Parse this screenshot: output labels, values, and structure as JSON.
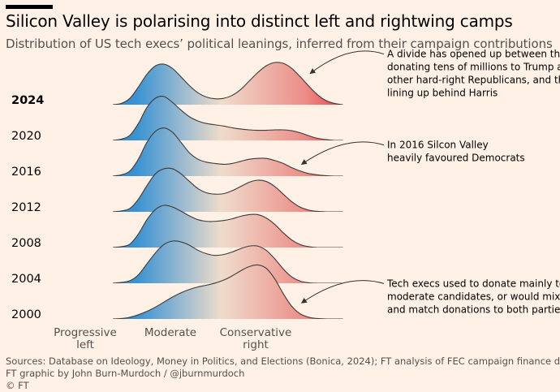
{
  "header": {
    "title": "Silicon Valley is polarising into distinct left and rightwing camps",
    "subtitle": "Distribution of US tech execs’ political leanings, inferred from their campaign contributions"
  },
  "footer": {
    "source": "Sources: Database on Ideology, Money in Politics, and Elections (Bonica, 2024); FT analysis of FEC campaign finance data",
    "credit": "FT graphic by John Burn-Murdoch / @jburnmurdoch",
    "copyright": "© FT"
  },
  "colors": {
    "left": "#1f82c8",
    "middle": "#efdccb",
    "right": "#e41f2c",
    "background": "#fff1e5"
  },
  "chart_data": {
    "type": "area",
    "variant": "ridgeline",
    "title": "Silicon Valley is polarising into distinct left and rightwing camps",
    "subtitle": "Distribution of US tech execs’ political leanings, inferred from their campaign contributions",
    "x_axis": {
      "ticks": [
        {
          "value": 0.0,
          "lines": [
            "Progressive",
            "left"
          ]
        },
        {
          "value": 0.5,
          "lines": [
            "Moderate"
          ]
        },
        {
          "value": 1.0,
          "lines": [
            "Conservative",
            "right"
          ]
        }
      ],
      "range": [
        -0.1,
        1.25
      ]
    },
    "series": [
      {
        "name": "2024",
        "bold": true,
        "x": [
          -0.1,
          -0.05,
          0.0,
          0.05,
          0.1,
          0.15,
          0.2,
          0.25,
          0.3,
          0.35,
          0.4,
          0.45,
          0.5,
          0.55,
          0.6,
          0.65,
          0.7,
          0.75,
          0.8,
          0.85,
          0.9,
          0.95,
          1.0,
          1.05,
          1.1,
          1.15,
          1.2,
          1.25
        ],
        "density": [
          0,
          0.03,
          0.15,
          0.42,
          0.72,
          0.92,
          0.96,
          0.86,
          0.66,
          0.45,
          0.28,
          0.18,
          0.14,
          0.15,
          0.22,
          0.36,
          0.56,
          0.76,
          0.92,
          1.0,
          0.98,
          0.86,
          0.66,
          0.44,
          0.24,
          0.1,
          0.03,
          0
        ]
      },
      {
        "name": "2020",
        "bold": false,
        "x": [
          -0.1,
          -0.05,
          0.0,
          0.05,
          0.1,
          0.15,
          0.2,
          0.25,
          0.3,
          0.35,
          0.4,
          0.45,
          0.5,
          0.55,
          0.6,
          0.65,
          0.7,
          0.75,
          0.8,
          0.85,
          0.9,
          0.95,
          1.0,
          1.05,
          1.1,
          1.15,
          1.2,
          1.25
        ],
        "density": [
          0,
          0.03,
          0.12,
          0.4,
          0.78,
          1.0,
          1.04,
          0.9,
          0.72,
          0.56,
          0.46,
          0.4,
          0.37,
          0.34,
          0.3,
          0.27,
          0.25,
          0.24,
          0.24,
          0.25,
          0.25,
          0.23,
          0.18,
          0.11,
          0.05,
          0.02,
          0,
          0
        ]
      },
      {
        "name": "2016",
        "bold": false,
        "x": [
          -0.1,
          -0.05,
          0.0,
          0.05,
          0.1,
          0.15,
          0.2,
          0.25,
          0.3,
          0.35,
          0.4,
          0.45,
          0.5,
          0.55,
          0.6,
          0.65,
          0.7,
          0.75,
          0.8,
          0.85,
          0.9,
          0.95,
          1.0,
          1.05,
          1.1,
          1.15,
          1.2,
          1.25
        ],
        "density": [
          0,
          0.03,
          0.12,
          0.4,
          0.8,
          1.06,
          1.14,
          1.04,
          0.8,
          0.55,
          0.4,
          0.33,
          0.3,
          0.28,
          0.3,
          0.35,
          0.4,
          0.42,
          0.42,
          0.37,
          0.3,
          0.2,
          0.12,
          0.06,
          0.03,
          0.01,
          0,
          0
        ]
      },
      {
        "name": "2012",
        "bold": false,
        "x": [
          -0.1,
          -0.05,
          0.0,
          0.05,
          0.1,
          0.15,
          0.2,
          0.25,
          0.3,
          0.35,
          0.4,
          0.45,
          0.5,
          0.55,
          0.6,
          0.65,
          0.7,
          0.75,
          0.8,
          0.85,
          0.9,
          0.95,
          1.0,
          1.05,
          1.1,
          1.15,
          1.2,
          1.25
        ],
        "density": [
          0,
          0.02,
          0.08,
          0.3,
          0.62,
          0.9,
          1.02,
          1.02,
          0.9,
          0.72,
          0.55,
          0.45,
          0.42,
          0.43,
          0.5,
          0.6,
          0.7,
          0.75,
          0.72,
          0.6,
          0.42,
          0.24,
          0.11,
          0.04,
          0.01,
          0,
          0,
          0
        ]
      },
      {
        "name": "2008",
        "bold": false,
        "x": [
          -0.1,
          -0.05,
          0.0,
          0.05,
          0.1,
          0.15,
          0.2,
          0.25,
          0.3,
          0.35,
          0.4,
          0.45,
          0.5,
          0.55,
          0.6,
          0.65,
          0.7,
          0.75,
          0.8,
          0.85,
          0.9,
          0.95,
          1.0,
          1.05,
          1.1,
          1.15,
          1.2,
          1.25
        ],
        "density": [
          0,
          0.02,
          0.08,
          0.32,
          0.66,
          0.9,
          1.0,
          0.96,
          0.86,
          0.75,
          0.66,
          0.62,
          0.62,
          0.64,
          0.68,
          0.74,
          0.78,
          0.78,
          0.7,
          0.55,
          0.35,
          0.18,
          0.07,
          0.02,
          0,
          0,
          0,
          0
        ]
      },
      {
        "name": "2004",
        "bold": false,
        "x": [
          -0.1,
          -0.05,
          0.0,
          0.05,
          0.1,
          0.15,
          0.2,
          0.25,
          0.3,
          0.35,
          0.4,
          0.45,
          0.5,
          0.55,
          0.6,
          0.65,
          0.7,
          0.75,
          0.8,
          0.85,
          0.9,
          0.95,
          1.0,
          1.05,
          1.1,
          1.15,
          1.2,
          1.25
        ],
        "density": [
          0,
          0.02,
          0.06,
          0.2,
          0.46,
          0.72,
          0.92,
          1.0,
          0.98,
          0.9,
          0.78,
          0.7,
          0.66,
          0.68,
          0.74,
          0.82,
          0.88,
          0.88,
          0.78,
          0.58,
          0.34,
          0.15,
          0.05,
          0.01,
          0,
          0,
          0,
          0
        ]
      },
      {
        "name": "2000",
        "bold": false,
        "x": [
          -0.1,
          -0.05,
          0.0,
          0.05,
          0.1,
          0.15,
          0.2,
          0.25,
          0.3,
          0.35,
          0.4,
          0.45,
          0.5,
          0.55,
          0.6,
          0.65,
          0.7,
          0.75,
          0.8,
          0.85,
          0.9,
          0.95,
          1.0,
          1.05,
          1.1,
          1.15,
          1.2,
          1.25
        ],
        "density": [
          0,
          0.01,
          0.04,
          0.1,
          0.18,
          0.28,
          0.4,
          0.52,
          0.62,
          0.7,
          0.76,
          0.8,
          0.85,
          0.92,
          1.02,
          1.14,
          1.24,
          1.28,
          1.2,
          0.95,
          0.6,
          0.3,
          0.12,
          0.04,
          0.01,
          0,
          0,
          0
        ]
      }
    ],
    "annotations": [
      {
        "series": "2024",
        "point_x": 1.0,
        "text": [
          "A divide has opened up between those",
          "donating tens of millions to Trump and",
          "other hard-right Republicans, and those",
          "lining up behind Harris"
        ]
      },
      {
        "series": "2016",
        "point_x": 0.95,
        "text": [
          "In 2016 Silcon Valley",
          "heavily favoured Democrats"
        ]
      },
      {
        "series": "2000",
        "point_x": 0.95,
        "text": [
          "Tech execs used to donate mainly to",
          "moderate candidates, or would mix",
          "and match donations to both parties"
        ]
      }
    ],
    "grid": false,
    "legend": "none"
  }
}
